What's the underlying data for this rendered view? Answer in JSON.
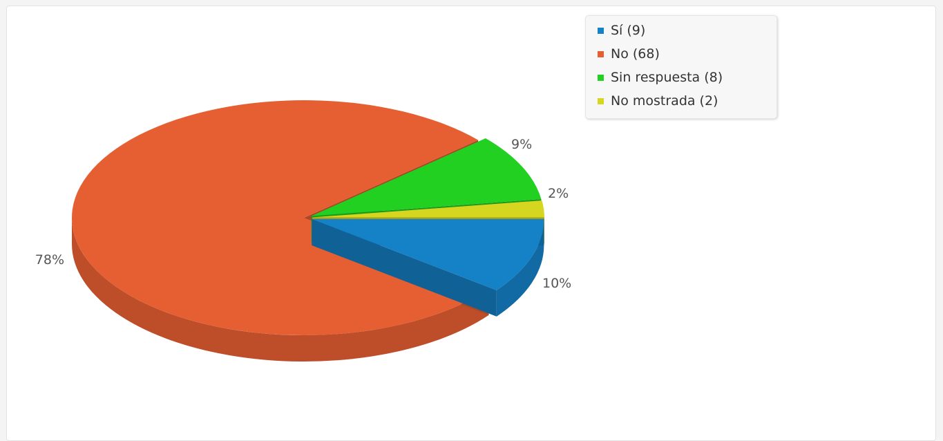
{
  "chart_data": {
    "type": "pie",
    "style": "3d",
    "title": "",
    "categories": [
      "Sí",
      "No",
      "Sin respuesta",
      "No mostrada"
    ],
    "counts": [
      9,
      68,
      8,
      2
    ],
    "percent_labels": [
      "10%",
      "78%",
      "9%",
      "2%"
    ],
    "legend_labels": [
      "Sí (9)",
      "No (68)",
      "Sin respuesta (8)",
      "No mostrada (2)"
    ],
    "colors": [
      "#1581c7",
      "#e65f32",
      "#21d021",
      "#d6d621"
    ],
    "legend_position": "top-right"
  }
}
